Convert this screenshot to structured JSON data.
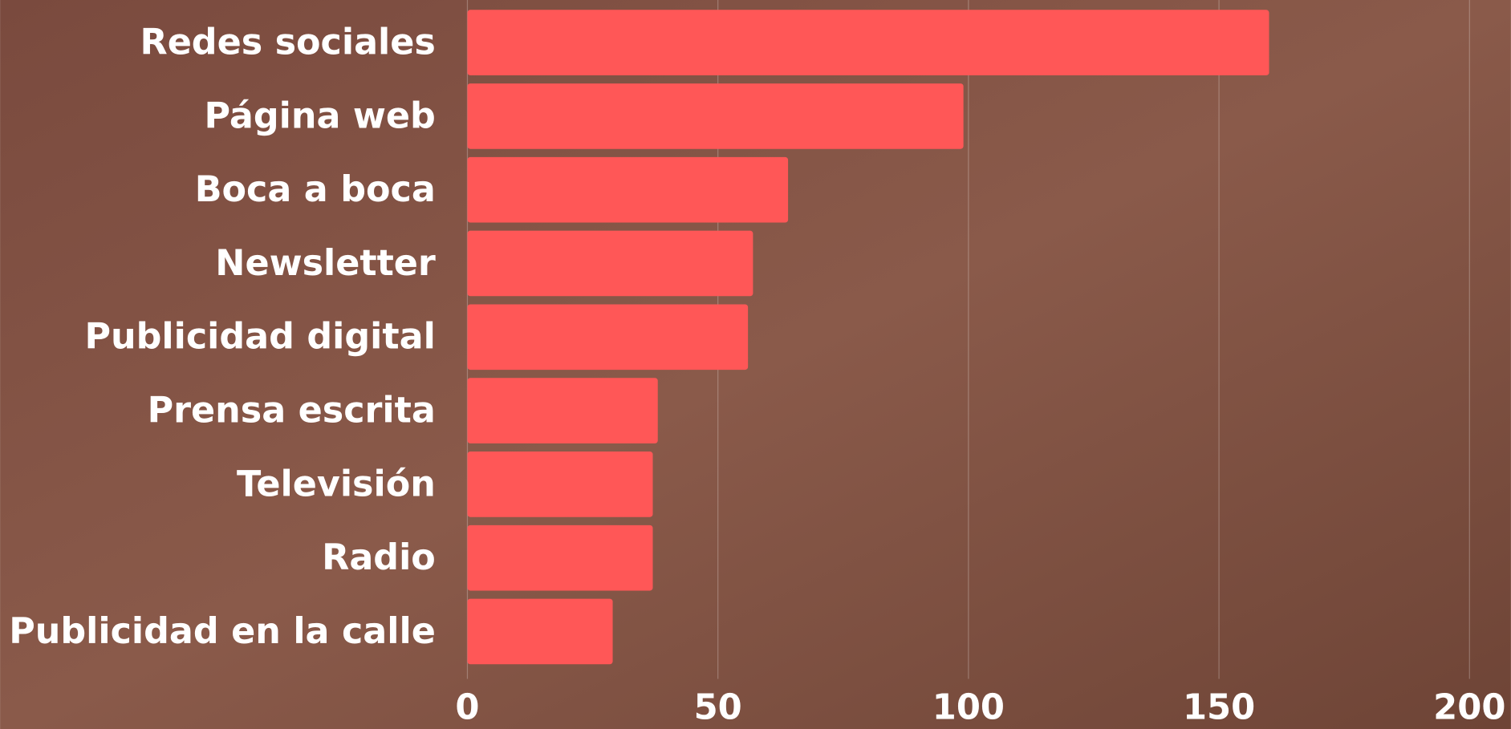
{
  "chart_data": {
    "type": "bar",
    "orientation": "horizontal",
    "categories": [
      "Redes sociales",
      "Página web",
      "Boca a boca",
      "Newsletter",
      "Publicidad digital",
      "Prensa escrita",
      "Televisión",
      "Radio",
      "Publicidad en la calle"
    ],
    "values": [
      160,
      99,
      64,
      57,
      56,
      38,
      37,
      37,
      29
    ],
    "color": "#ff5757",
    "xlim": [
      0,
      200
    ],
    "xticks": [
      0,
      50,
      100,
      150,
      200
    ],
    "grid": true
  }
}
